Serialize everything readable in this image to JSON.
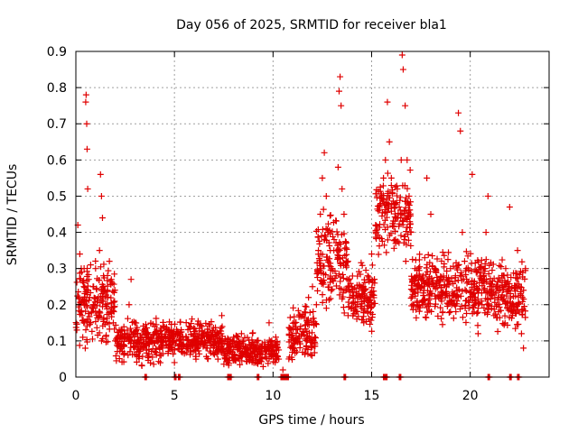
{
  "chart_data": {
    "type": "scatter",
    "title": "Day 056 of 2025, SRMTID for receiver bla1",
    "xlabel": "GPS time / hours",
    "ylabel": "SRMTID / TECUs",
    "xlim": [
      0,
      24
    ],
    "ylim": [
      0,
      0.9
    ],
    "xticks": [
      0,
      5,
      10,
      15,
      20
    ],
    "yticks": [
      0,
      0.1,
      0.2,
      0.3,
      0.4,
      0.5,
      0.6,
      0.7,
      0.8,
      0.9
    ],
    "grid": true,
    "marker": "+",
    "color": "#e00000",
    "series": [
      {
        "name": "SRMTID",
        "points": [
          [
            0.05,
            0.13
          ],
          [
            0.1,
            0.42
          ],
          [
            0.15,
            0.22
          ],
          [
            0.2,
            0.34
          ],
          [
            0.25,
            0.18
          ],
          [
            0.3,
            0.29
          ],
          [
            0.35,
            0.11
          ],
          [
            0.4,
            0.15
          ],
          [
            0.45,
            0.2
          ],
          [
            0.5,
            0.76
          ],
          [
            0.52,
            0.78
          ],
          [
            0.55,
            0.7
          ],
          [
            0.57,
            0.63
          ],
          [
            0.6,
            0.52
          ],
          [
            0.65,
            0.27
          ],
          [
            0.7,
            0.22
          ],
          [
            0.75,
            0.31
          ],
          [
            0.8,
            0.18
          ],
          [
            0.9,
            0.25
          ],
          [
            1.0,
            0.3
          ],
          [
            1.1,
            0.21
          ],
          [
            1.2,
            0.35
          ],
          [
            1.25,
            0.56
          ],
          [
            1.3,
            0.5
          ],
          [
            1.35,
            0.44
          ],
          [
            1.4,
            0.28
          ],
          [
            1.5,
            0.2
          ],
          [
            1.6,
            0.24
          ],
          [
            1.7,
            0.32
          ],
          [
            1.8,
            0.27
          ],
          [
            1.9,
            0.15
          ],
          [
            2.0,
            0.1
          ],
          [
            2.2,
            0.13
          ],
          [
            2.4,
            0.09
          ],
          [
            2.6,
            0.12
          ],
          [
            2.7,
            0.2
          ],
          [
            2.8,
            0.27
          ],
          [
            3.0,
            0.15
          ],
          [
            3.2,
            0.1
          ],
          [
            3.4,
            0.08
          ],
          [
            3.6,
            0.12
          ],
          [
            3.8,
            0.11
          ],
          [
            4.0,
            0.14
          ],
          [
            4.2,
            0.1
          ],
          [
            4.4,
            0.08
          ],
          [
            4.6,
            0.13
          ],
          [
            4.8,
            0.1
          ],
          [
            5.0,
            0.04
          ],
          [
            5.2,
            0.12
          ],
          [
            5.4,
            0.09
          ],
          [
            5.6,
            0.11
          ],
          [
            5.8,
            0.08
          ],
          [
            6.0,
            0.12
          ],
          [
            6.2,
            0.1
          ],
          [
            6.4,
            0.14
          ],
          [
            6.6,
            0.08
          ],
          [
            6.8,
            0.11
          ],
          [
            7.0,
            0.09
          ],
          [
            7.2,
            0.12
          ],
          [
            7.4,
            0.17
          ],
          [
            7.6,
            0.1
          ],
          [
            7.8,
            0.07
          ],
          [
            8.0,
            0.11
          ],
          [
            8.2,
            0.08
          ],
          [
            8.4,
            0.12
          ],
          [
            8.6,
            0.06
          ],
          [
            8.8,
            0.09
          ],
          [
            9.0,
            0.07
          ],
          [
            9.2,
            0.1
          ],
          [
            9.4,
            0.05
          ],
          [
            9.6,
            0.08
          ],
          [
            9.8,
            0.15
          ],
          [
            10.0,
            0.06
          ],
          [
            10.2,
            0.09
          ],
          [
            10.5,
            0.02
          ],
          [
            10.8,
            0.05
          ],
          [
            11.0,
            0.08
          ],
          [
            11.2,
            0.1
          ],
          [
            11.4,
            0.14
          ],
          [
            11.6,
            0.18
          ],
          [
            11.8,
            0.22
          ],
          [
            12.0,
            0.25
          ],
          [
            12.2,
            0.2
          ],
          [
            12.3,
            0.35
          ],
          [
            12.4,
            0.45
          ],
          [
            12.5,
            0.55
          ],
          [
            12.6,
            0.62
          ],
          [
            12.7,
            0.5
          ],
          [
            12.8,
            0.4
          ],
          [
            12.9,
            0.35
          ],
          [
            13.0,
            0.3
          ],
          [
            13.1,
            0.38
          ],
          [
            13.2,
            0.28
          ],
          [
            13.3,
            0.58
          ],
          [
            13.35,
            0.79
          ],
          [
            13.4,
            0.83
          ],
          [
            13.45,
            0.75
          ],
          [
            13.5,
            0.52
          ],
          [
            13.6,
            0.45
          ],
          [
            13.7,
            0.37
          ],
          [
            13.8,
            0.32
          ],
          [
            14.0,
            0.25
          ],
          [
            14.2,
            0.18
          ],
          [
            14.4,
            0.22
          ],
          [
            14.6,
            0.15
          ],
          [
            14.8,
            0.28
          ],
          [
            15.0,
            0.34
          ],
          [
            15.2,
            0.42
          ],
          [
            15.4,
            0.47
          ],
          [
            15.6,
            0.55
          ],
          [
            15.7,
            0.6
          ],
          [
            15.8,
            0.76
          ],
          [
            15.9,
            0.65
          ],
          [
            16.0,
            0.55
          ],
          [
            16.2,
            0.48
          ],
          [
            16.3,
            0.52
          ],
          [
            16.4,
            0.47
          ],
          [
            16.5,
            0.6
          ],
          [
            16.55,
            0.89
          ],
          [
            16.6,
            0.85
          ],
          [
            16.7,
            0.75
          ],
          [
            16.8,
            0.6
          ],
          [
            16.9,
            0.5
          ],
          [
            17.0,
            0.4
          ],
          [
            17.2,
            0.3
          ],
          [
            17.4,
            0.25
          ],
          [
            17.6,
            0.2
          ],
          [
            17.8,
            0.55
          ],
          [
            18.0,
            0.45
          ],
          [
            18.2,
            0.3
          ],
          [
            18.4,
            0.22
          ],
          [
            18.6,
            0.18
          ],
          [
            18.8,
            0.25
          ],
          [
            19.0,
            0.3
          ],
          [
            19.2,
            0.2
          ],
          [
            19.4,
            0.73
          ],
          [
            19.5,
            0.68
          ],
          [
            19.6,
            0.4
          ],
          [
            19.8,
            0.3
          ],
          [
            20.0,
            0.22
          ],
          [
            20.1,
            0.56
          ],
          [
            20.2,
            0.18
          ],
          [
            20.4,
            0.12
          ],
          [
            20.6,
            0.2
          ],
          [
            20.8,
            0.4
          ],
          [
            20.9,
            0.5
          ],
          [
            21.0,
            0.25
          ],
          [
            21.2,
            0.17
          ],
          [
            21.4,
            0.2
          ],
          [
            21.6,
            0.28
          ],
          [
            21.8,
            0.3
          ],
          [
            22.0,
            0.47
          ],
          [
            22.2,
            0.2
          ],
          [
            22.4,
            0.35
          ],
          [
            22.6,
            0.12
          ],
          [
            22.7,
            0.08
          ],
          [
            22.8,
            0.3
          ]
        ],
        "segments": [
          {
            "x0": 0.0,
            "x1": 2.0,
            "y_base": 0.2,
            "y_spread": 0.15
          },
          {
            "x0": 2.0,
            "x1": 4.5,
            "y_base": 0.1,
            "y_spread": 0.08
          },
          {
            "x0": 4.5,
            "x1": 7.5,
            "y_base": 0.1,
            "y_spread": 0.07
          },
          {
            "x0": 7.5,
            "x1": 10.3,
            "y_base": 0.07,
            "y_spread": 0.06
          },
          {
            "x0": 10.8,
            "x1": 12.2,
            "y_base": 0.12,
            "y_spread": 0.1
          },
          {
            "x0": 12.2,
            "x1": 13.8,
            "y_base": 0.32,
            "y_spread": 0.2
          },
          {
            "x0": 13.8,
            "x1": 15.2,
            "y_base": 0.22,
            "y_spread": 0.12
          },
          {
            "x0": 15.2,
            "x1": 17.0,
            "y_base": 0.45,
            "y_spread": 0.15
          },
          {
            "x0": 17.0,
            "x1": 19.6,
            "y_base": 0.25,
            "y_spread": 0.12
          },
          {
            "x0": 19.6,
            "x1": 21.0,
            "y_base": 0.25,
            "y_spread": 0.14
          },
          {
            "x0": 21.0,
            "x1": 22.8,
            "y_base": 0.22,
            "y_spread": 0.12
          }
        ],
        "zero_points": [
          3.5,
          5.0,
          5.2,
          7.7,
          7.8,
          9.2,
          10.4,
          10.5,
          10.6,
          10.7,
          13.6,
          15.6,
          15.7,
          16.4,
          20.9,
          22.0,
          22.4
        ]
      }
    ]
  }
}
